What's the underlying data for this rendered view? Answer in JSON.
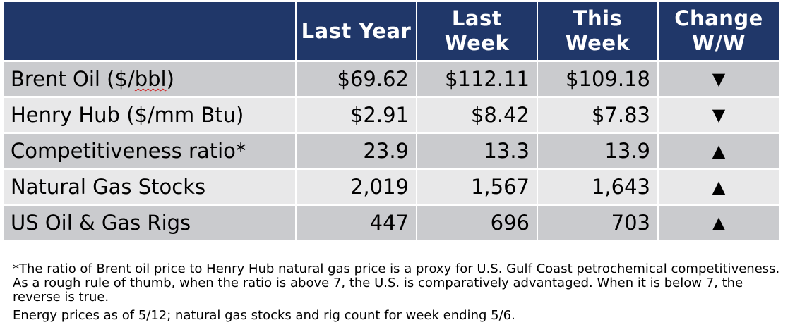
{
  "table": {
    "headers": [
      "",
      "Last Year",
      "Last Week",
      "This Week",
      "Change W/W"
    ],
    "rows": [
      {
        "label_before": "Brent Oil ($/",
        "label_marked": "bbl",
        "label_after": ")",
        "last_year": "$69.62",
        "last_week": "$112.11",
        "this_week": "$109.18",
        "change": "▼"
      },
      {
        "label_before": "Henry Hub ($/mm Btu)",
        "label_marked": "",
        "label_after": "",
        "last_year": "$2.91",
        "last_week": "$8.42",
        "this_week": "$7.83",
        "change": "▼"
      },
      {
        "label_before": "Competitiveness ratio*",
        "label_marked": "",
        "label_after": "",
        "last_year": "23.9",
        "last_week": "13.3",
        "this_week": "13.9",
        "change": "▲"
      },
      {
        "label_before": "Natural Gas Stocks",
        "label_marked": "",
        "label_after": "",
        "last_year": "2,019",
        "last_week": "1,567",
        "this_week": "1,643",
        "change": "▲"
      },
      {
        "label_before": "US Oil & Gas Rigs",
        "label_marked": "",
        "label_after": "",
        "last_year": "447",
        "last_week": "696",
        "this_week": "703",
        "change": "▲"
      }
    ]
  },
  "notes": {
    "footnote": "*The ratio of Brent oil price to Henry Hub natural gas price is a proxy for U.S. Gulf Coast petrochemical competitiveness. As a rough rule of thumb, when the ratio is above 7, the U.S. is comparatively advantaged. When it is below 7, the reverse is true.",
    "asof": "Energy prices as of 5/12; natural gas stocks and rig count for week ending 5/6."
  },
  "colors": {
    "header_bg": "#203769",
    "row_dark": "#cacbce",
    "row_light": "#e8e8e9",
    "header_text": "#ffffff"
  },
  "icons": {
    "down": "down-triangle-icon",
    "up": "up-triangle-icon"
  }
}
